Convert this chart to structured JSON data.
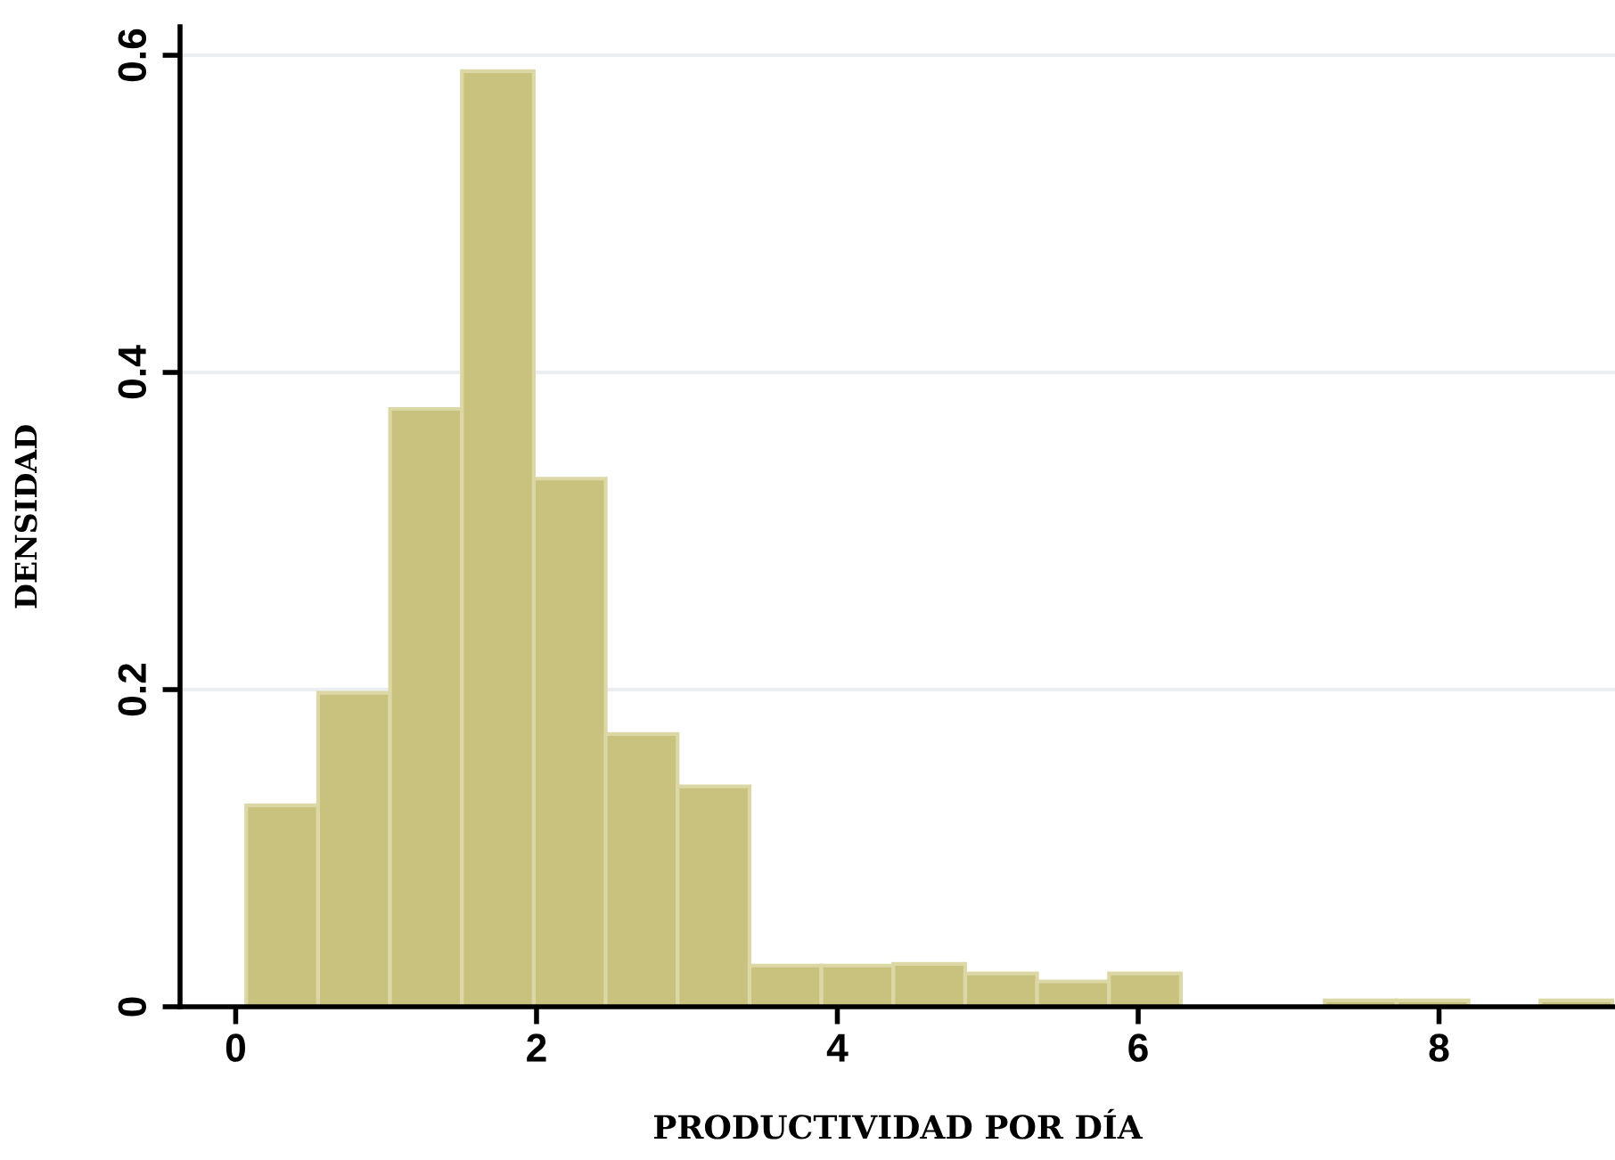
{
  "chart_data": {
    "type": "histogram",
    "xlabel": "PRODUCTIVIDAD POR DÍA",
    "ylabel": "DENSIDAD",
    "bins": [
      0.07,
      0.548,
      1.026,
      1.504,
      1.982,
      2.46,
      2.938,
      3.416,
      3.894,
      4.372,
      4.85,
      5.328,
      5.806,
      6.284,
      6.762,
      7.24,
      7.718,
      8.196,
      8.674,
      9.152
    ],
    "values": [
      0.127,
      0.198,
      0.377,
      0.59,
      0.333,
      0.172,
      0.139,
      0.026,
      0.026,
      0.027,
      0.021,
      0.016,
      0.021,
      0,
      0,
      0.004,
      0.004,
      0,
      0.004
    ],
    "color": "#c9c27f",
    "xlim": [
      -0.37,
      9.17
    ],
    "ylim": [
      0,
      0.618
    ],
    "xticks": [
      0,
      2,
      4,
      6,
      8
    ],
    "yticks": [
      0,
      0.2,
      0.4,
      0.6
    ],
    "grid": "y"
  }
}
